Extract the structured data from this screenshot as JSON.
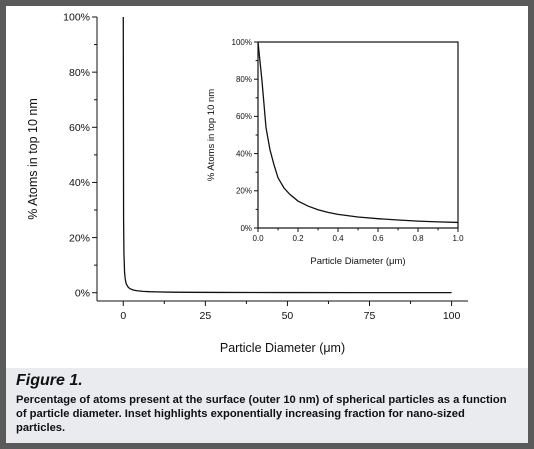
{
  "chart_data": [
    {
      "type": "line",
      "title": "",
      "xlabel": "Particle Diameter (μm)",
      "ylabel": "% Atoms in top 10 nm",
      "xlim": [
        -8,
        105
      ],
      "ylim": [
        -3,
        100
      ],
      "xticks": [
        0,
        25,
        50,
        75,
        100
      ],
      "xtick_labels": [
        "0",
        "25",
        "50",
        "75",
        "100"
      ],
      "yticks": [
        0,
        20,
        40,
        60,
        80,
        100
      ],
      "ytick_labels": [
        "0%",
        "20%",
        "40%",
        "60%",
        "80%",
        "100%"
      ],
      "grid": false,
      "series": [
        {
          "x": [
            0.0,
            0.1,
            0.2,
            0.4,
            0.6,
            0.8,
            1.0,
            1.5,
            2,
            3,
            4,
            6,
            8,
            10,
            15,
            20,
            30,
            50,
            75,
            100
          ],
          "y": [
            100,
            27,
            14.5,
            7.3,
            5.0,
            3.7,
            3.0,
            2.0,
            1.5,
            1.0,
            0.75,
            0.5,
            0.37,
            0.3,
            0.2,
            0.15,
            0.1,
            0.06,
            0.04,
            0.03
          ]
        }
      ]
    },
    {
      "type": "line",
      "title": "",
      "xlabel": "Particle Diameter (μm)",
      "ylabel": "% Atoms in top 10 nm",
      "xlim": [
        0,
        1.0
      ],
      "ylim": [
        0,
        100
      ],
      "xticks": [
        0.0,
        0.2,
        0.4,
        0.6,
        0.8,
        1.0
      ],
      "xtick_labels": [
        "0.0",
        "0.2",
        "0.4",
        "0.6",
        "0.8",
        "1.0"
      ],
      "yticks": [
        0,
        20,
        40,
        60,
        80,
        100
      ],
      "ytick_labels": [
        "0%",
        "20%",
        "40%",
        "60%",
        "80%",
        "100%"
      ],
      "grid": false,
      "series": [
        {
          "x": [
            0.0,
            0.02,
            0.04,
            0.06,
            0.08,
            0.1,
            0.13,
            0.16,
            0.2,
            0.25,
            0.3,
            0.35,
            0.4,
            0.5,
            0.6,
            0.7,
            0.8,
            0.9,
            1.0
          ],
          "y": [
            100,
            79,
            54,
            42,
            34,
            27,
            21.5,
            18,
            14.5,
            11.8,
            9.8,
            8.4,
            7.3,
            5.9,
            5.0,
            4.3,
            3.7,
            3.3,
            3.0
          ]
        }
      ]
    }
  ],
  "caption": {
    "figure_label": "Figure 1.",
    "text": "Percentage of atoms present at the surface (outer 10 nm) of spherical particles as a function of particle diameter. Inset highlights exponentially increasing fraction for nano-sized particles."
  },
  "colors": {
    "line": "#111111",
    "axis": "#111111",
    "caption_background": "#e9ebee",
    "border": "#5a5a5a"
  }
}
